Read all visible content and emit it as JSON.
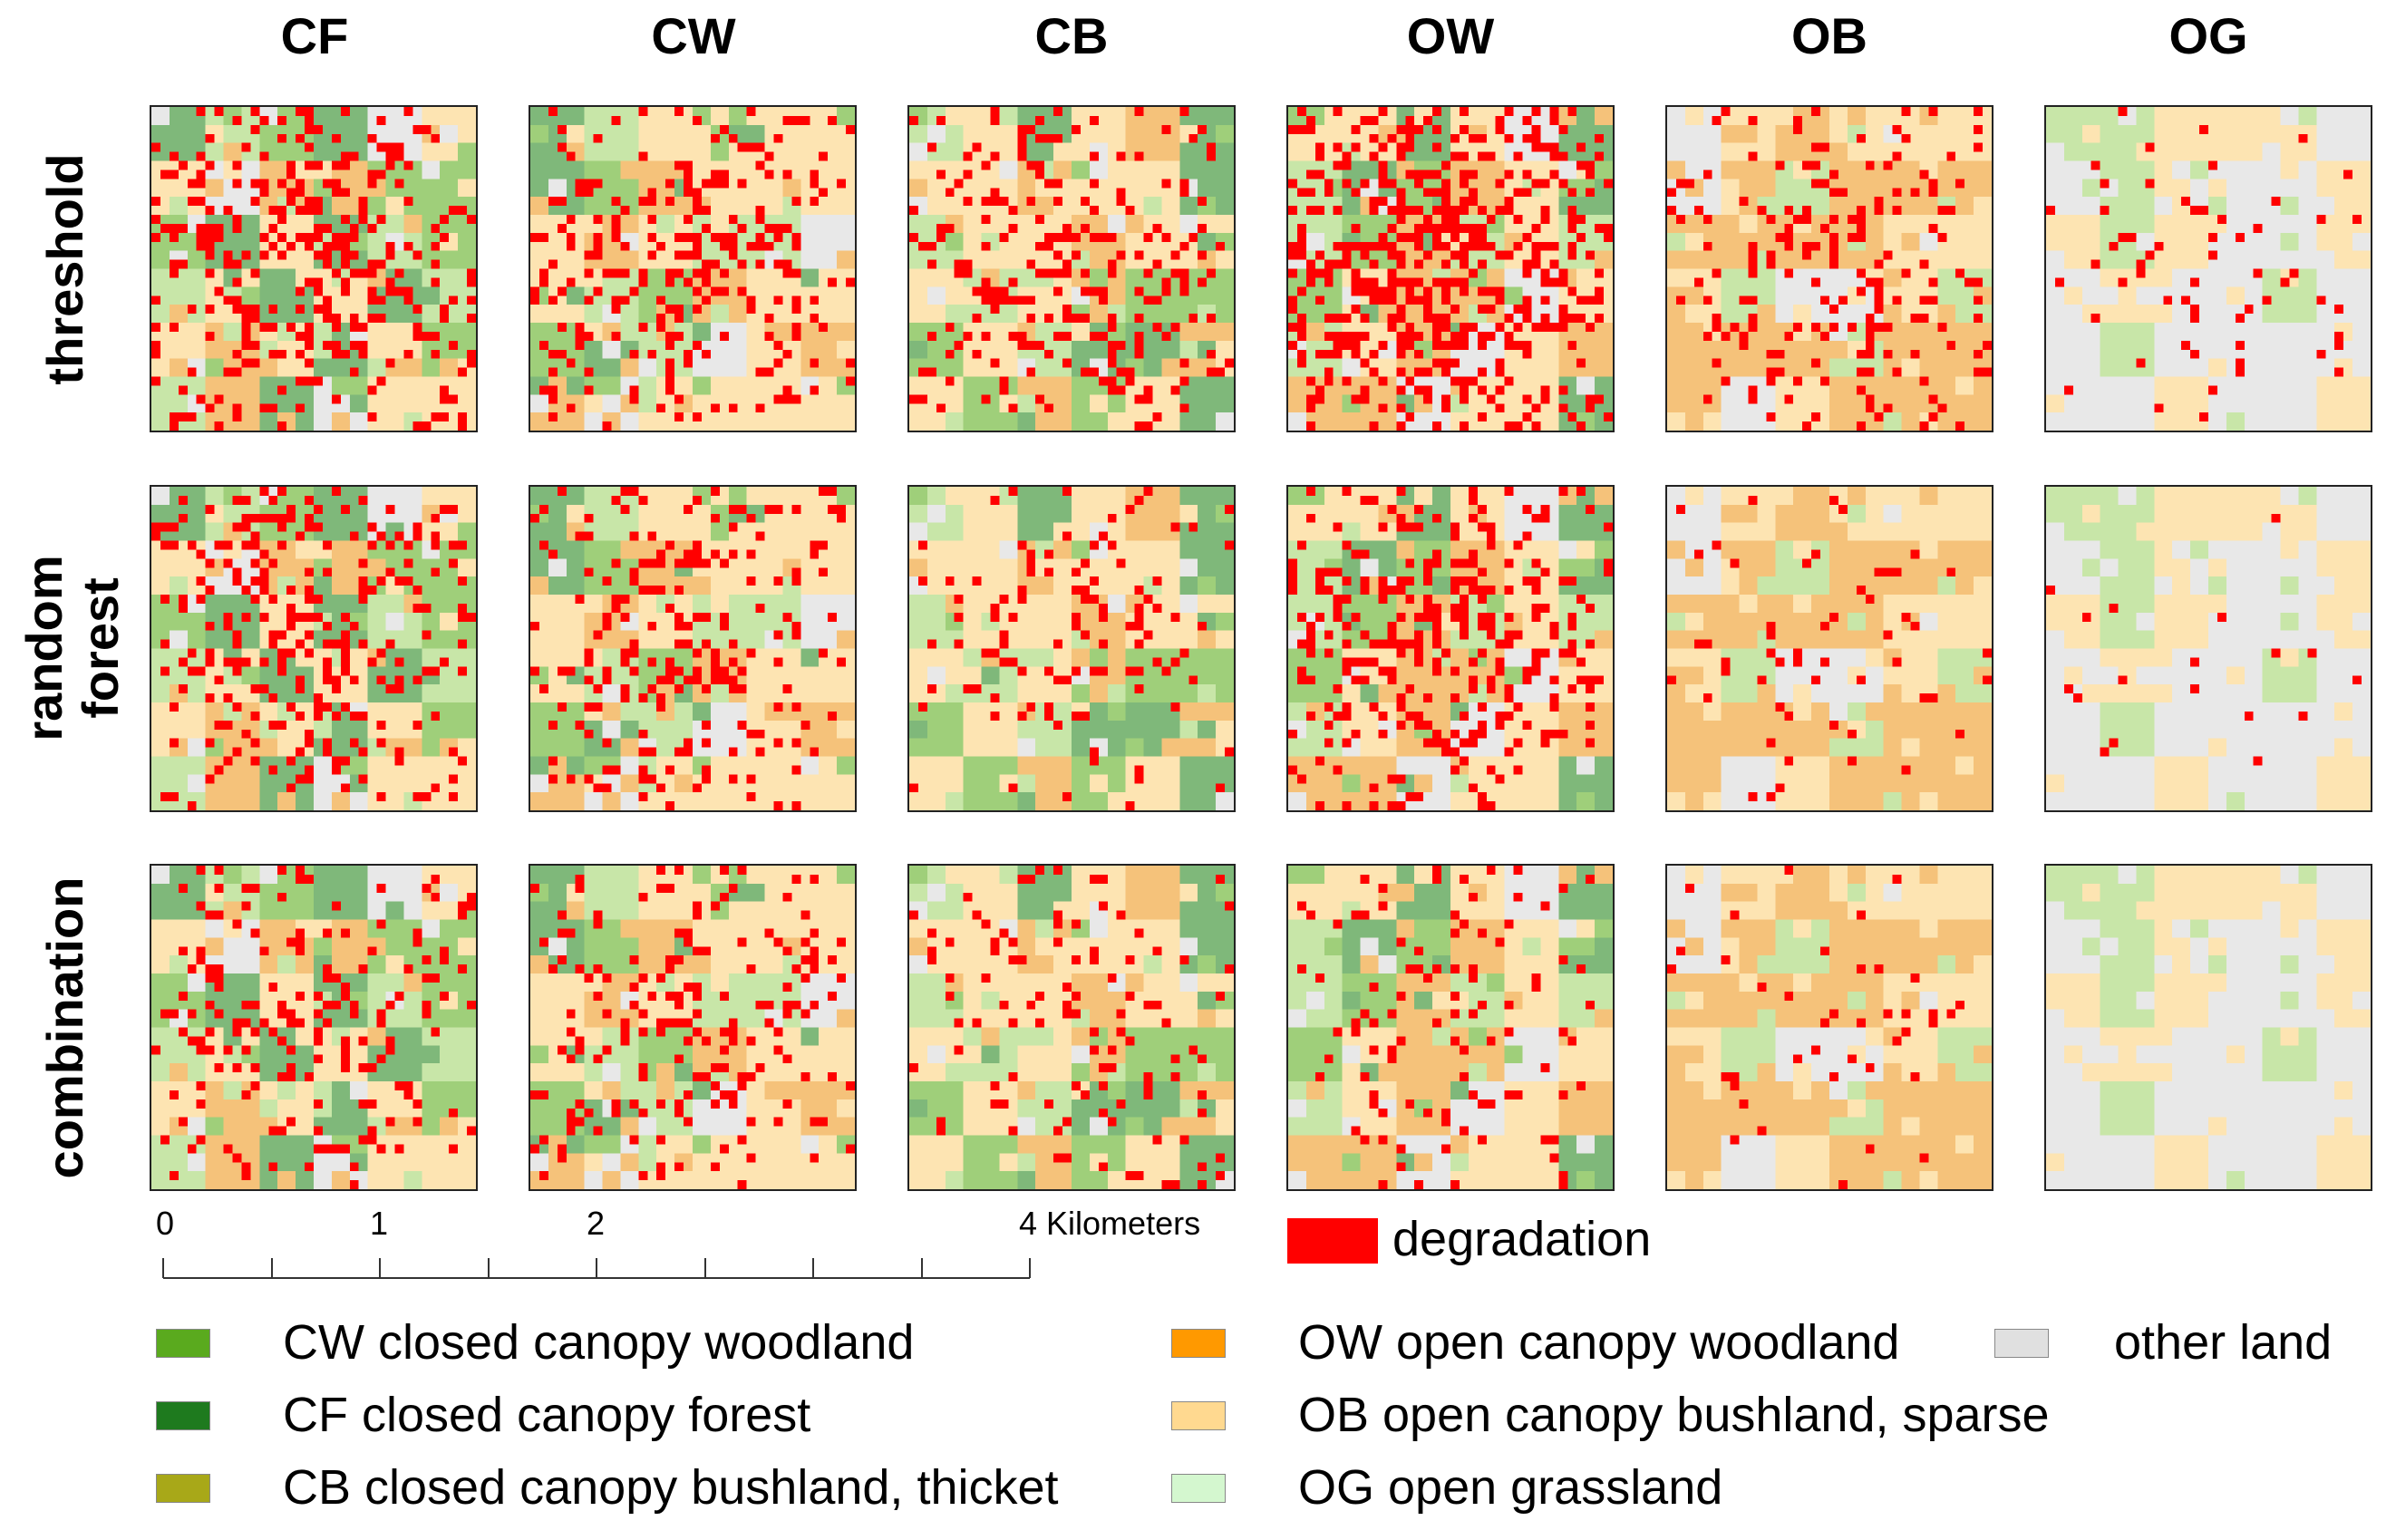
{
  "columns": [
    "CF",
    "CW",
    "CB",
    "OW",
    "OB",
    "OG"
  ],
  "rows": [
    {
      "id": "threshold",
      "lines": [
        "threshold"
      ]
    },
    {
      "id": "random-forest",
      "lines": [
        "random",
        "forest"
      ]
    },
    {
      "id": "combination",
      "lines": [
        "combination"
      ]
    }
  ],
  "scale_bar": {
    "labels": [
      "0",
      "1",
      "2",
      "4 Kilometers"
    ]
  },
  "degradation": {
    "label": "degradation",
    "color": "#ff0000"
  },
  "legend": [
    {
      "id": "cw",
      "label": "CW closed canopy woodland",
      "color": "#5aaa1e"
    },
    {
      "id": "cf",
      "label": "CF closed canopy forest",
      "color": "#1e7a1e"
    },
    {
      "id": "cb",
      "label": "CB closed canopy bushland, thicket",
      "color": "#a8a818"
    },
    {
      "id": "ow",
      "label": "OW open canopy woodland",
      "color": "#ff9900"
    },
    {
      "id": "ob",
      "label": "OB open canopy bushland, sparse",
      "color": "#ffd990"
    },
    {
      "id": "og",
      "label": "OG open grassland",
      "color": "#d4f7cf"
    },
    {
      "id": "other",
      "label": "other land",
      "color": "#e0e0e0"
    }
  ],
  "map_colors": {
    "forest": "#7fb87a",
    "woodland": "#9fcf7a",
    "light_green": "#c8e6a8",
    "orange": "#f5c27a",
    "cream": "#fde4b2",
    "grey": "#e8e8e8"
  }
}
